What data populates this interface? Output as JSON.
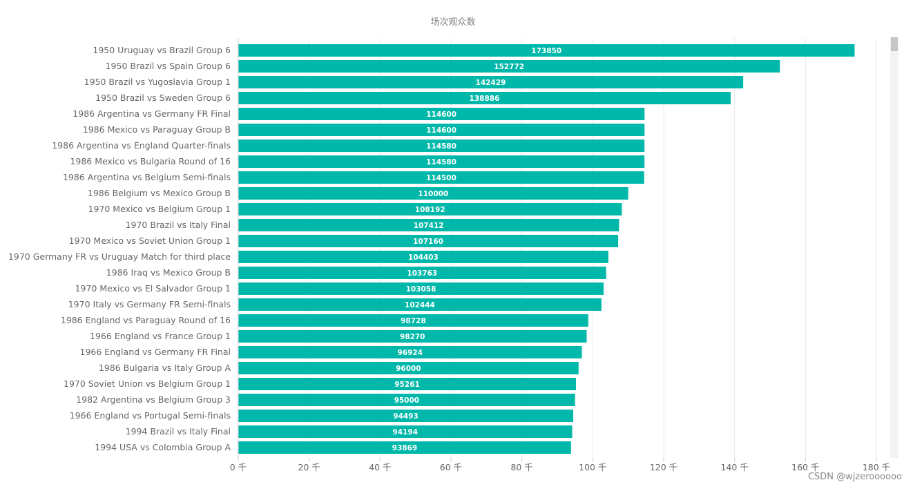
{
  "watermark": "CSDN @wjzeroooooo",
  "colors": {
    "bar": "#00b8a9",
    "grid": "#e8e8e8",
    "axis": "#cccccc",
    "scroll_track": "#f2f2f2",
    "scroll_thumb": "#c6c6c6"
  },
  "chart_data": {
    "type": "bar",
    "orientation": "horizontal",
    "title": "场次观众数",
    "categories": [
      "1950 Uruguay vs Brazil Group 6",
      "1950 Brazil vs Spain Group 6",
      "1950 Brazil vs Yugoslavia Group 1",
      "1950 Brazil vs Sweden Group 6",
      "1986 Argentina vs Germany FR Final",
      "1986 Mexico vs Paraguay Group B",
      "1986 Argentina vs England Quarter-finals",
      "1986 Mexico vs Bulgaria Round of 16",
      "1986 Argentina vs Belgium Semi-finals",
      "1986 Belgium vs Mexico Group B",
      "1970 Mexico vs Belgium Group 1",
      "1970 Brazil vs Italy Final",
      "1970 Mexico vs Soviet Union Group 1",
      "1970 Germany FR vs Uruguay Match for third place",
      "1986 Iraq vs Mexico Group B",
      "1970 Mexico vs El Salvador Group 1",
      "1970 Italy vs Germany FR Semi-finals",
      "1986 England vs Paraguay Round of 16",
      "1966 England vs France Group 1",
      "1966 England vs Germany FR Final",
      "1986 Bulgaria vs Italy Group A",
      "1970 Soviet Union vs Belgium Group 1",
      "1982 Argentina vs Belgium Group 3",
      "1966 England vs Portugal Semi-finals",
      "1994 Brazil vs Italy Final",
      "1994 USA vs Colombia Group A"
    ],
    "values": [
      173850,
      152772,
      142429,
      138886,
      114600,
      114600,
      114580,
      114580,
      114500,
      110000,
      108192,
      107412,
      107160,
      104403,
      103763,
      103058,
      102444,
      98728,
      98270,
      96924,
      96000,
      95261,
      95000,
      94493,
      94194,
      93869
    ],
    "value_labels": [
      "173850",
      "152772",
      "142429",
      "138886",
      "114600",
      "114600",
      "114580",
      "114580",
      "114500",
      "110000",
      "108192",
      "107412",
      "107160",
      "104403",
      "103763",
      "103058",
      "102444",
      "98728",
      "98270",
      "96924",
      "96000",
      "95261",
      "95000",
      "94493",
      "94194",
      "93869"
    ],
    "xlim": [
      0,
      180000
    ],
    "x_ticks": [
      0,
      20000,
      40000,
      60000,
      80000,
      100000,
      120000,
      140000,
      160000,
      180000
    ],
    "x_tick_labels": [
      "0 千",
      "20 千",
      "40 千",
      "60 千",
      "80 千",
      "100 千",
      "120 千",
      "140 千",
      "160 千",
      "180 千"
    ],
    "grid": true,
    "legend": "none"
  }
}
